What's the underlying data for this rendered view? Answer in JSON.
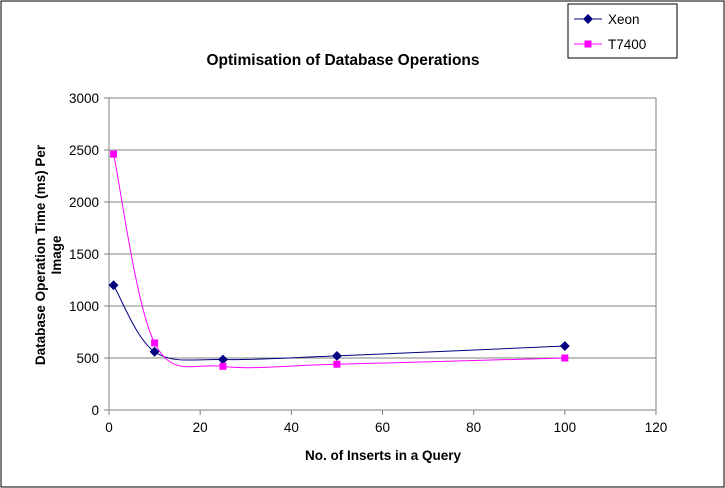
{
  "chart_data": {
    "type": "scatter",
    "title": "Optimisation of Database Operations",
    "xlabel": "No. of Inserts in a Query",
    "ylabel_lines": [
      "Database Operation Time (ms) Per",
      "Image"
    ],
    "xlim": [
      0,
      120
    ],
    "ylim": [
      0,
      3000
    ],
    "xticks": [
      0,
      20,
      40,
      60,
      80,
      100,
      120
    ],
    "yticks": [
      0,
      500,
      1000,
      1500,
      2000,
      2500,
      3000
    ],
    "grid": "horizontal",
    "legend_position": "top-right",
    "smoothed_lines": true,
    "series": [
      {
        "name": "Xeon",
        "color": "#000080",
        "marker": "diamond",
        "x": [
          1,
          10,
          25,
          50,
          100
        ],
        "y": [
          1200,
          560,
          485,
          520,
          615
        ]
      },
      {
        "name": "T7400",
        "color": "#FF00FF",
        "marker": "square",
        "x": [
          1,
          10,
          25,
          50,
          100
        ],
        "y": [
          2460,
          645,
          420,
          440,
          500
        ]
      }
    ]
  }
}
